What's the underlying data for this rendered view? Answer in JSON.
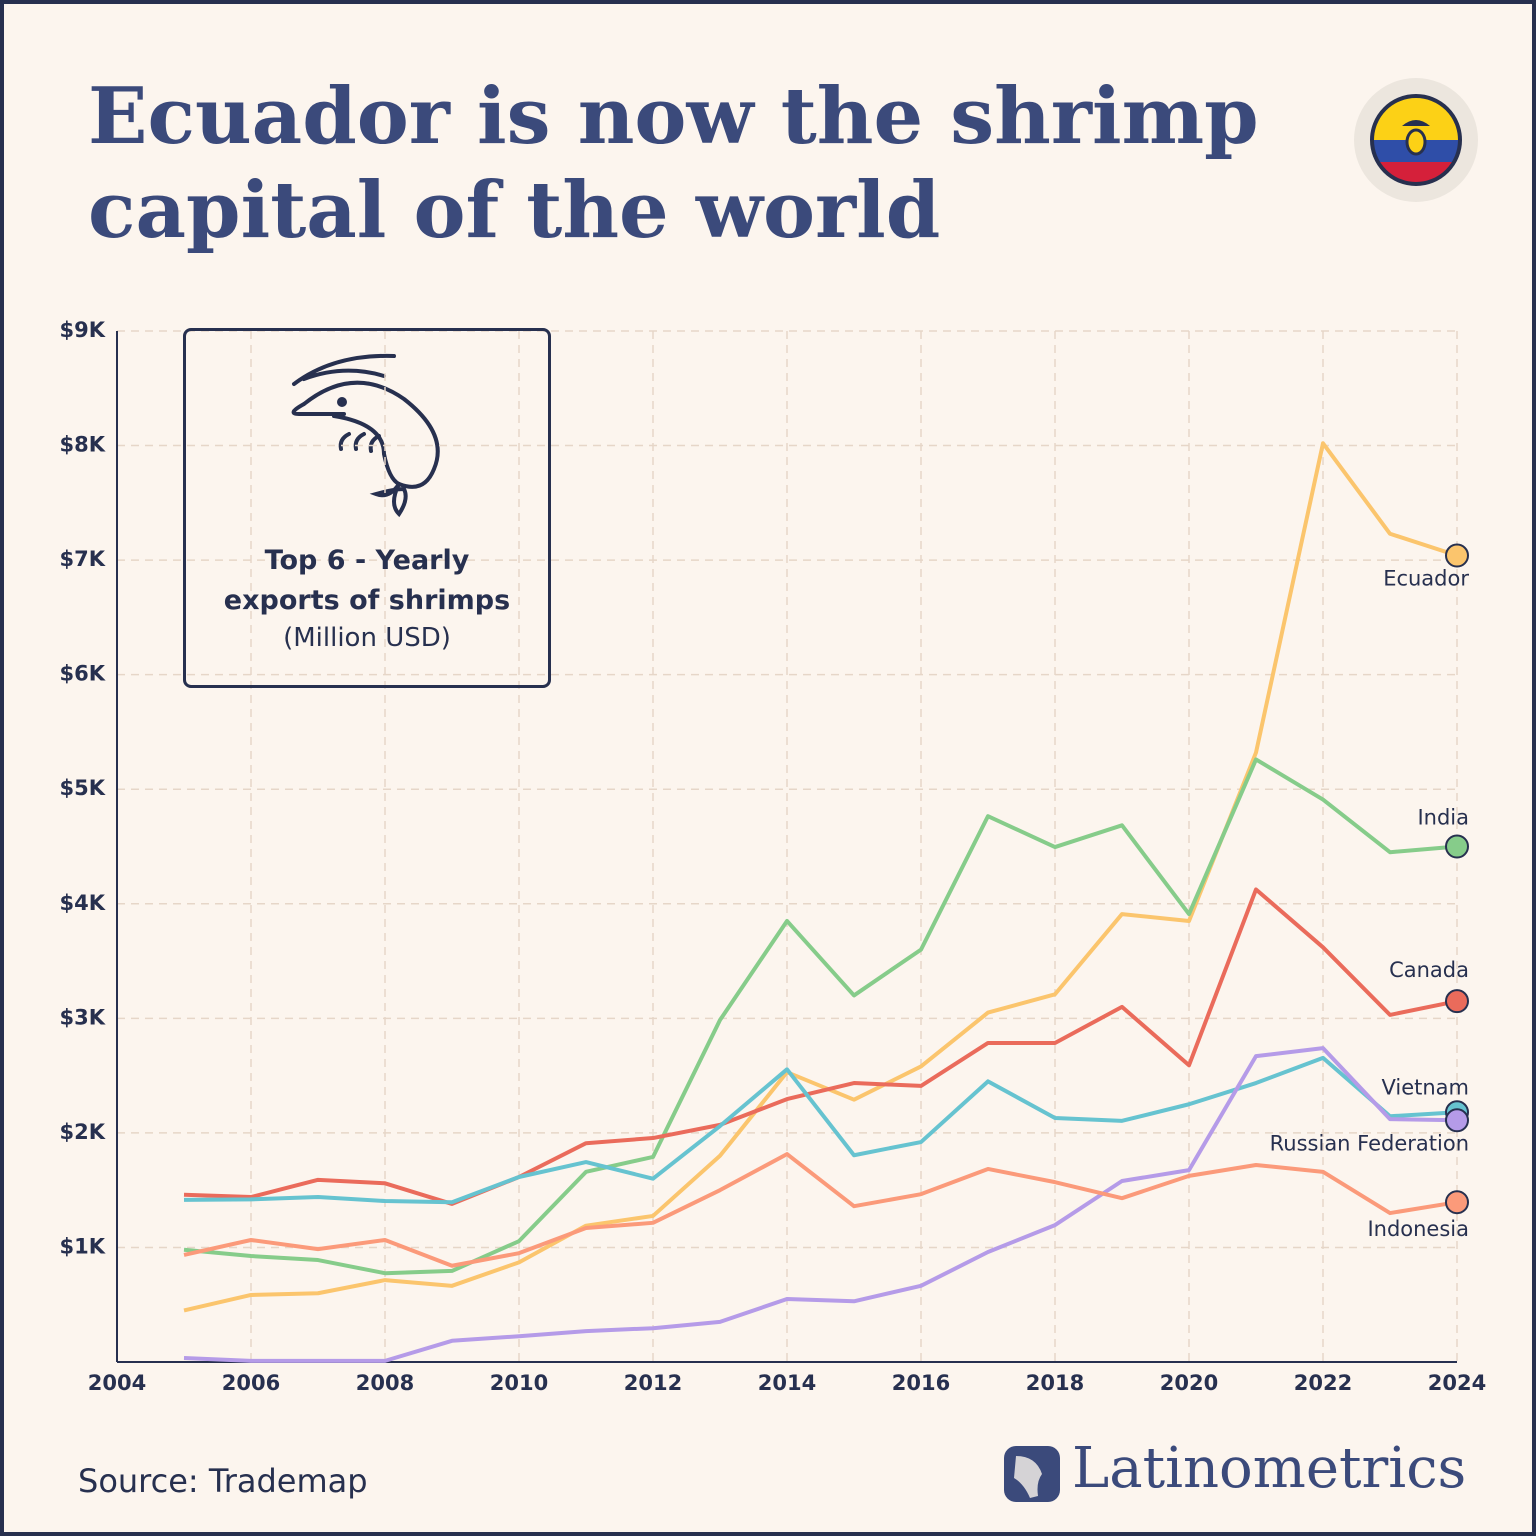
{
  "chart_data": {
    "type": "line",
    "title": "Ecuador is now the shrimp capital of the world",
    "subtitle": "Top 6 - Yearly exports of shrimps",
    "units": "(Million USD)",
    "source": "Source: Trademap",
    "brand": "Latinometrics",
    "x": [
      2005,
      2006,
      2007,
      2008,
      2009,
      2010,
      2011,
      2012,
      2013,
      2014,
      2015,
      2016,
      2017,
      2018,
      2019,
      2020,
      2021,
      2022,
      2023,
      2024
    ],
    "xlim": [
      2004,
      2024
    ],
    "xticks": [
      2004,
      2006,
      2008,
      2010,
      2012,
      2014,
      2016,
      2018,
      2020,
      2022,
      2024
    ],
    "ylim": [
      0,
      9000
    ],
    "yticks": [
      {
        "value": 1000,
        "label": "$1K"
      },
      {
        "value": 2000,
        "label": "$2K"
      },
      {
        "value": 3000,
        "label": "$3K"
      },
      {
        "value": 4000,
        "label": "$4K"
      },
      {
        "value": 5000,
        "label": "$5K"
      },
      {
        "value": 6000,
        "label": "$6K"
      },
      {
        "value": 7000,
        "label": "$7K"
      },
      {
        "value": 8000,
        "label": "$8K"
      },
      {
        "value": 9000,
        "label": "$9K"
      }
    ],
    "grid": true,
    "series": [
      {
        "name": "Ecuador",
        "color": "#fbc56d",
        "values": [
          450,
          585,
          600,
          715,
          665,
          870,
          1190,
          1275,
          1800,
          2530,
          2290,
          2580,
          3050,
          3210,
          3910,
          3850,
          5320,
          8020,
          7230,
          7040
        ]
      },
      {
        "name": "India",
        "color": "#86cc8a",
        "values": [
          980,
          925,
          890,
          775,
          795,
          1055,
          1660,
          1790,
          2985,
          3850,
          3200,
          3600,
          4765,
          4495,
          4685,
          3910,
          5260,
          4910,
          4450,
          4500
        ]
      },
      {
        "name": "Canada",
        "color": "#ea6b5b",
        "values": [
          1460,
          1440,
          1590,
          1560,
          1380,
          1615,
          1910,
          1955,
          2070,
          2295,
          2435,
          2410,
          2785,
          2785,
          3100,
          2590,
          4125,
          3620,
          3030,
          3150
        ]
      },
      {
        "name": "Vietnam",
        "color": "#66c3d0",
        "values": [
          1415,
          1420,
          1440,
          1405,
          1395,
          1615,
          1745,
          1600,
          2060,
          2555,
          1805,
          1920,
          2450,
          2130,
          2105,
          2250,
          2435,
          2655,
          2145,
          2180
        ]
      },
      {
        "name": "Russian Federation",
        "color": "#b59be8",
        "values": [
          35,
          10,
          10,
          10,
          185,
          225,
          270,
          295,
          350,
          550,
          530,
          665,
          960,
          1195,
          1580,
          1675,
          2670,
          2740,
          2120,
          2110
        ]
      },
      {
        "name": "Indonesia",
        "color": "#fb9a7a",
        "values": [
          935,
          1065,
          985,
          1065,
          840,
          950,
          1170,
          1215,
          1500,
          1815,
          1360,
          1465,
          1685,
          1570,
          1430,
          1625,
          1720,
          1660,
          1300,
          1395
        ]
      }
    ]
  }
}
